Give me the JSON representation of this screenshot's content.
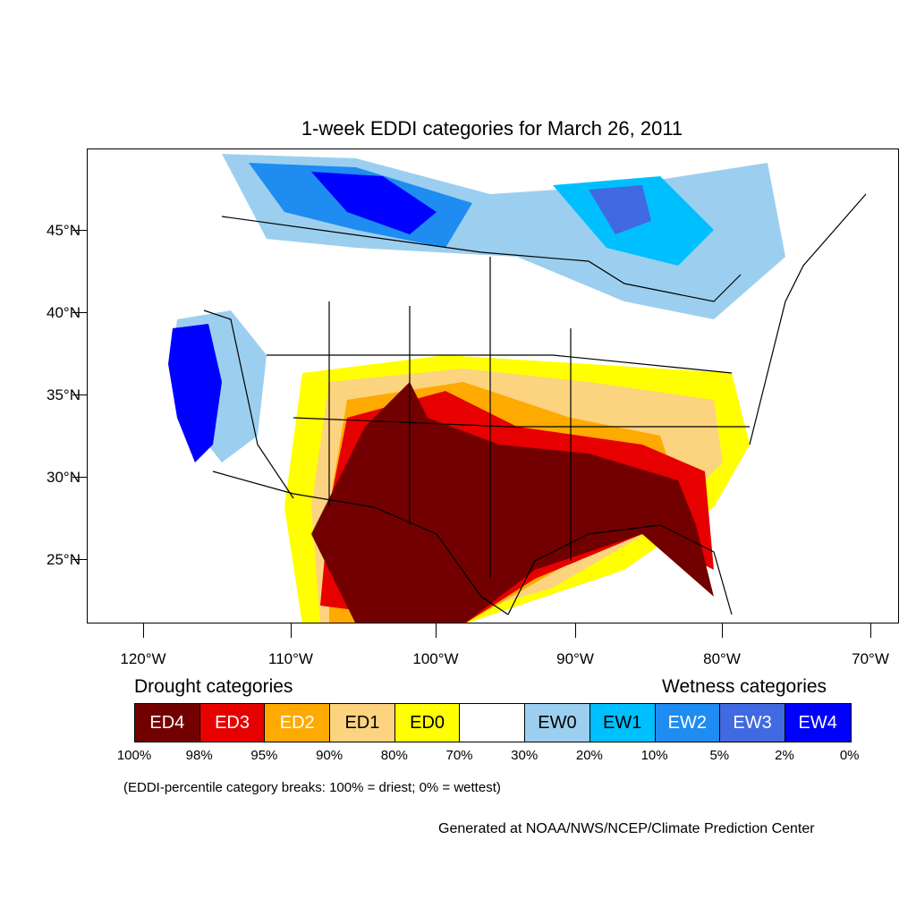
{
  "title": "1-week EDDI categories for March 26, 2011",
  "lat_ticks": [
    "45°N",
    "40°N",
    "35°N",
    "30°N",
    "25°N"
  ],
  "lon_ticks": [
    "120°W",
    "110°W",
    "100°W",
    "90°W",
    "80°W",
    "70°W"
  ],
  "legend": {
    "drought_label": "Drought categories",
    "wetness_label": "Wetness categories",
    "categories": [
      {
        "label": "ED4",
        "color": "#730000",
        "text_color": "#ffffff"
      },
      {
        "label": "ED3",
        "color": "#e60000",
        "text_color": "#ffffff"
      },
      {
        "label": "ED2",
        "color": "#ffaa00",
        "text_color": "#ffffff"
      },
      {
        "label": "ED1",
        "color": "#fcd37f",
        "text_color": "#000000"
      },
      {
        "label": "ED0",
        "color": "#ffff00",
        "text_color": "#000000"
      },
      {
        "label": "",
        "color": "#ffffff",
        "text_color": "#000000"
      },
      {
        "label": "EW0",
        "color": "#9ccfef",
        "text_color": "#000000"
      },
      {
        "label": "EW1",
        "color": "#00bfff",
        "text_color": "#000000"
      },
      {
        "label": "EW2",
        "color": "#1e8cf0",
        "text_color": "#ffffff"
      },
      {
        "label": "EW3",
        "color": "#4169e1",
        "text_color": "#ffffff"
      },
      {
        "label": "EW4",
        "color": "#0000ff",
        "text_color": "#ffffff"
      }
    ],
    "breaks": [
      "100%",
      "98%",
      "95%",
      "90%",
      "80%",
      "70%",
      "30%",
      "20%",
      "10%",
      "5%",
      "2%",
      "0%"
    ]
  },
  "note": "(EDDI-percentile category breaks: 100% = driest; 0% = wettest)",
  "credit": "Generated at NOAA/NWS/NCEP/Climate Prediction Center"
}
